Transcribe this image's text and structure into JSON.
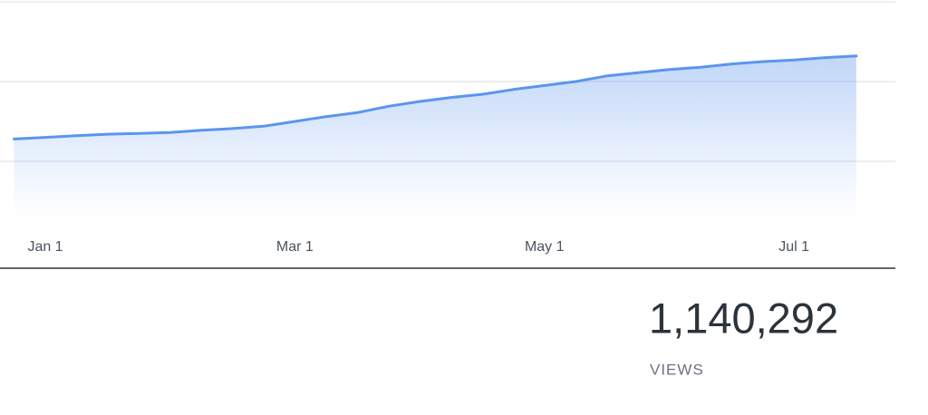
{
  "chart_data": {
    "type": "area",
    "categories": [
      null,
      "Jan 1",
      null,
      null,
      null,
      null,
      null,
      null,
      null,
      "Mar 1",
      null,
      null,
      null,
      null,
      null,
      null,
      null,
      "May 1",
      null,
      null,
      null,
      null,
      null,
      null,
      null,
      "Jul 1",
      null,
      null
    ],
    "values": [
      1.28,
      1.3,
      1.32,
      1.34,
      1.35,
      1.36,
      1.39,
      1.41,
      1.44,
      1.5,
      1.56,
      1.61,
      1.69,
      1.75,
      1.8,
      1.84,
      1.9,
      1.95,
      2.0,
      2.07,
      2.11,
      2.15,
      2.18,
      2.22,
      2.25,
      2.27,
      2.3,
      2.32
    ],
    "color": "#5b95ee",
    "ylim": [
      0,
      3
    ],
    "yticks": [
      1,
      2,
      3
    ],
    "grid": true
  },
  "stat": {
    "value": "1,140,292",
    "label": "VIEWS"
  }
}
